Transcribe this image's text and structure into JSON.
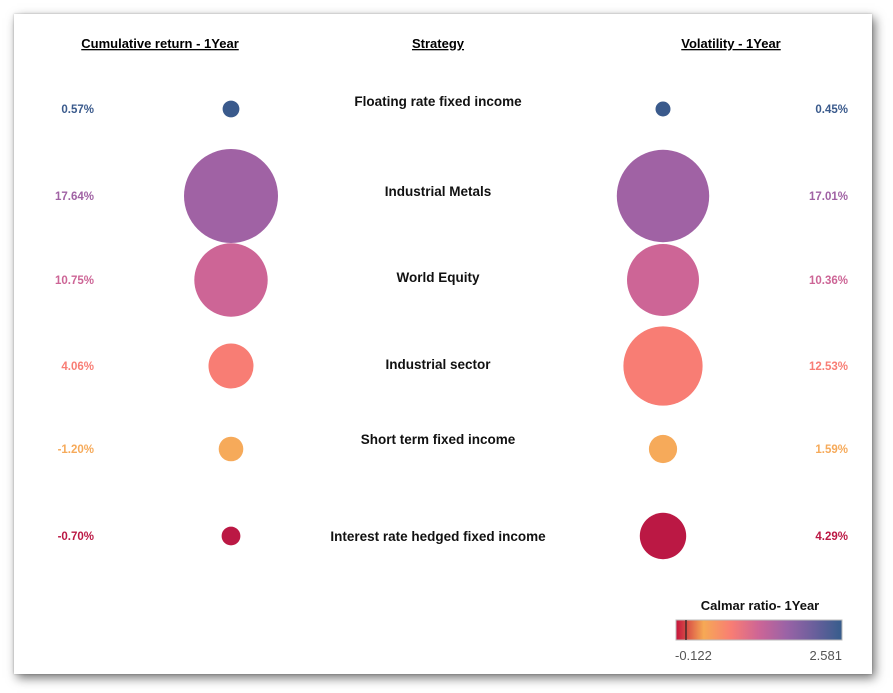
{
  "chart_data": {
    "type": "scatter",
    "headers": {
      "left": "Cumulative return - 1Year",
      "center": "Strategy",
      "right": "Volatility - 1Year"
    },
    "rows": [
      {
        "strategy": "Floating rate fixed income",
        "return": 0.57,
        "return_label": "0.57%",
        "volatility": 0.45,
        "volatility_label": "0.45%",
        "color": "#3a5a8c"
      },
      {
        "strategy": "Industrial Metals",
        "return": 17.64,
        "return_label": "17.64%",
        "volatility": 17.01,
        "volatility_label": "17.01%",
        "color": "#a062a4"
      },
      {
        "strategy": "World Equity",
        "return": 10.75,
        "return_label": "10.75%",
        "volatility": 10.36,
        "volatility_label": "10.36%",
        "color": "#cd6596"
      },
      {
        "strategy": "Industrial sector",
        "return": 4.06,
        "return_label": "4.06%",
        "volatility": 12.53,
        "volatility_label": "12.53%",
        "color": "#f87d74"
      },
      {
        "strategy": "Short term fixed income",
        "return": -1.2,
        "return_label": "-1.20%",
        "volatility": 1.59,
        "volatility_label": "1.59%",
        "color": "#f6aa5a"
      },
      {
        "strategy": "Interest rate hedged fixed income",
        "return": -0.7,
        "return_label": "-0.70%",
        "volatility": 4.29,
        "volatility_label": "4.29%",
        "color": "#bb1844"
      }
    ],
    "legend": {
      "title": "Calmar ratio- 1Year",
      "min_label": "-0.122",
      "max_label": "2.581",
      "min": -0.122,
      "max": 2.581,
      "gradient": [
        "#c5133c",
        "#f6a955",
        "#f87d74",
        "#cd6596",
        "#9a63a6",
        "#6a5f9c",
        "#365d8c"
      ]
    }
  }
}
